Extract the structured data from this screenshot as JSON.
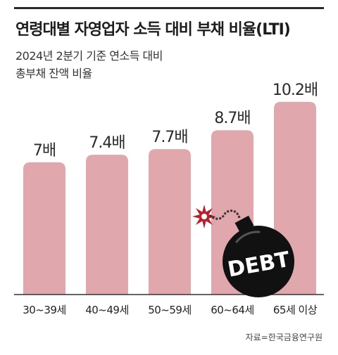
{
  "title": "연령대별 자영업자 소득 대비 부채 비율(LTI)",
  "subtitle_lines": [
    "2024년 2분기 기준 연소득 대비",
    "총부채 잔액 비율"
  ],
  "source": "자료=한국금융연구원",
  "colors": {
    "bar": "#e0a7ad",
    "label": "#2a2a2a",
    "axis": "#333333",
    "bomb": "#111111",
    "spark": "#b8202c"
  },
  "bomb": {
    "label": "DEBT",
    "icon": "bomb-icon"
  },
  "chart_data": {
    "type": "bar",
    "title": "연령대별 자영업자 소득 대비 부채 비율(LTI)",
    "categories": [
      "30~39세",
      "40~49세",
      "50~59세",
      "60~64세",
      "65세 이상"
    ],
    "values": [
      7,
      7.4,
      7.7,
      8.7,
      10.2
    ],
    "value_labels": [
      "7배",
      "7.4배",
      "7.7배",
      "8.7배",
      "10.2배"
    ],
    "ylim": [
      0,
      11.5
    ],
    "grid": false,
    "legend": "none"
  }
}
